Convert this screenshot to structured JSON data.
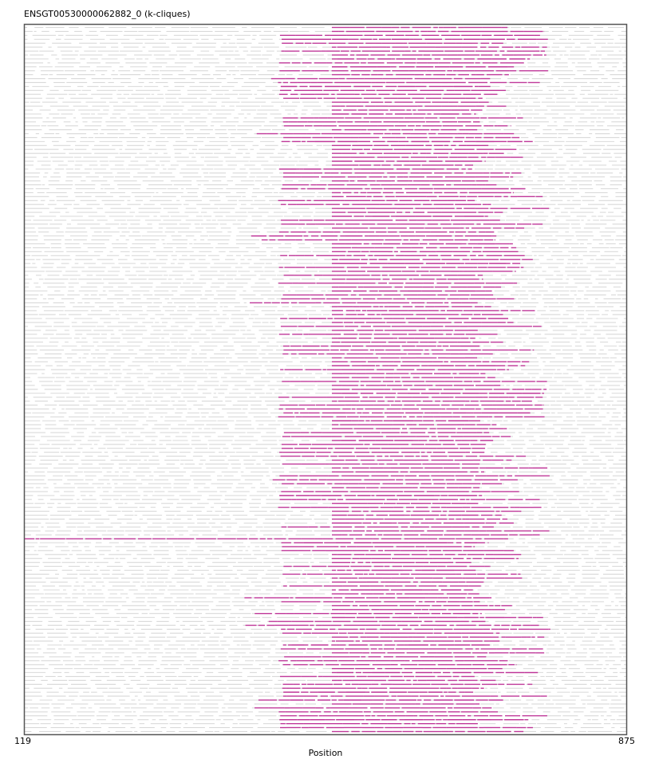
{
  "chart_data": {
    "type": "msa-alignment",
    "title": "ENSGT00530000062882_0 (k-cliques)",
    "xlabel": "Position",
    "ylabel": "",
    "xlim": [
      119,
      875
    ],
    "x_tick_labels": [
      "119",
      "875"
    ],
    "n_sequences": 180,
    "grid": false,
    "legend": "none",
    "colors": {
      "background_alignment": "#d9d9d9",
      "highlight": "#c0399a",
      "frame": "#555555"
    },
    "highlight_columns": {
      "core_start": 505,
      "core_end": 680,
      "extended_end": 760,
      "dense_block_start": 437,
      "full_span_row_index": 130
    }
  }
}
